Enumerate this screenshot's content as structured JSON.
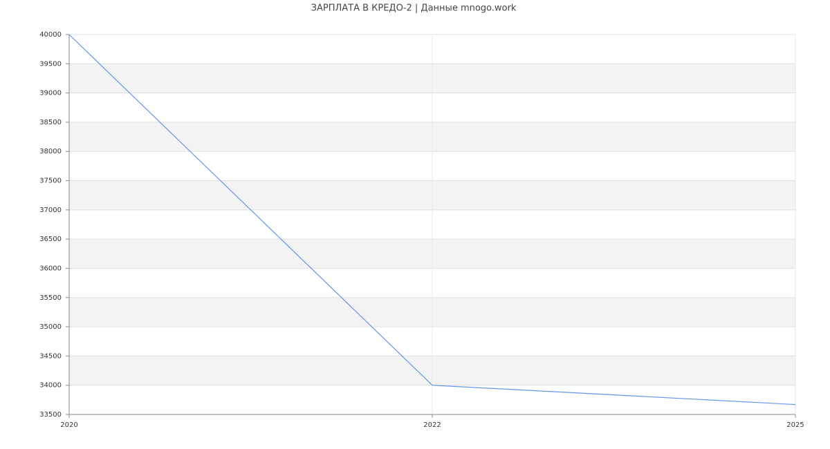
{
  "chart_data": {
    "type": "line",
    "title": "ЗАРПЛАТА В КРЕДО-2 | Данные mnogo.work",
    "categories": [
      "2020",
      "2022",
      "2025"
    ],
    "values": [
      40000,
      34000,
      33670
    ],
    "color": "#6495ed",
    "ylim": [
      33500,
      40000
    ],
    "yticks": [
      33500,
      34000,
      34500,
      35000,
      35500,
      36000,
      36500,
      37000,
      37500,
      38000,
      38500,
      39000,
      39500,
      40000
    ],
    "grid": true
  }
}
